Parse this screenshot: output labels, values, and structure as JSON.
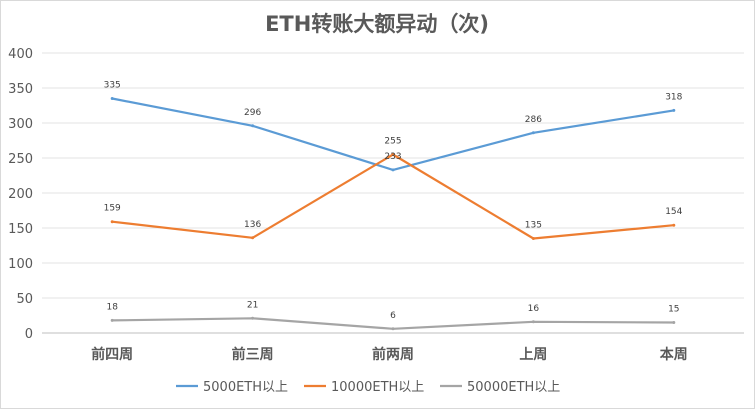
{
  "chart_data": {
    "type": "line",
    "title": "ETH转账大额异动（次)",
    "categories": [
      "前四周",
      "前三周",
      "前两周",
      "上周",
      "本周"
    ],
    "series": [
      {
        "name": "5000ETH以上",
        "color": "#5b9bd5",
        "values": [
          335,
          296,
          233,
          286,
          318
        ]
      },
      {
        "name": "10000ETH以上",
        "color": "#ed7d31",
        "values": [
          159,
          136,
          255,
          135,
          154
        ]
      },
      {
        "name": "50000ETH以上",
        "color": "#a5a5a5",
        "values": [
          18,
          21,
          6,
          16,
          15
        ]
      }
    ],
    "ylim": [
      0,
      400
    ],
    "yticks": [
      0,
      50,
      100,
      150,
      200,
      250,
      300,
      350,
      400
    ],
    "grid": true,
    "legend": "bottom"
  }
}
